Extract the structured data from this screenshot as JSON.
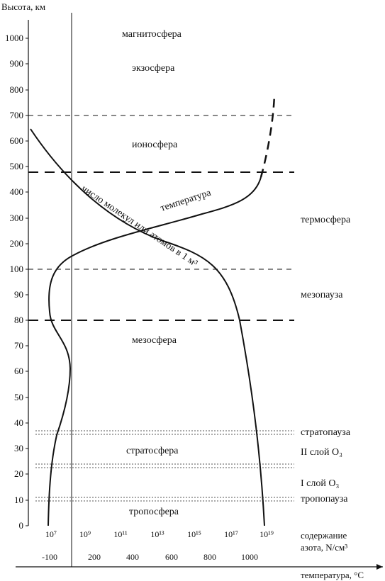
{
  "y_axis": {
    "title": "Высота, км",
    "tick_labels": [
      "0",
      "10",
      "20",
      "30",
      "40",
      "50",
      "60",
      "70",
      "80",
      "90",
      "100",
      "200",
      "300",
      "400",
      "500",
      "600",
      "700",
      "800",
      "900",
      "1000"
    ]
  },
  "x_axis_concentration": {
    "title_line1": "содержание",
    "title_line2": "азота, N/см³",
    "tick_labels": [
      "10⁷",
      "10⁹",
      "10¹¹",
      "10¹³",
      "10¹⁵",
      "10¹⁷",
      "10¹⁹"
    ]
  },
  "x_axis_temperature": {
    "title": "температура, °С",
    "tick_labels": [
      "-100",
      "200",
      "400",
      "600",
      "800",
      "1000"
    ]
  },
  "layers": {
    "magnetosphere": "магнитосфера",
    "exosphere": "экзосфера",
    "ionosphere": "ионосфера",
    "thermosphere": "термосфера",
    "mesopause": "мезопауза",
    "mesosphere": "мезосфера",
    "stratopause": "стратопауза",
    "ozone_layer_2": "II слой O₃",
    "stratosphere": "стратосфера",
    "ozone_layer_1": "I слой O₃",
    "tropopause": "тропопауза",
    "troposphere": "тропосфера"
  },
  "curves": {
    "temperature": "температура",
    "molecules": "число молекул или атомов в 1 м³"
  },
  "colors": {
    "ink": "#111111",
    "dotted": "#555555"
  }
}
